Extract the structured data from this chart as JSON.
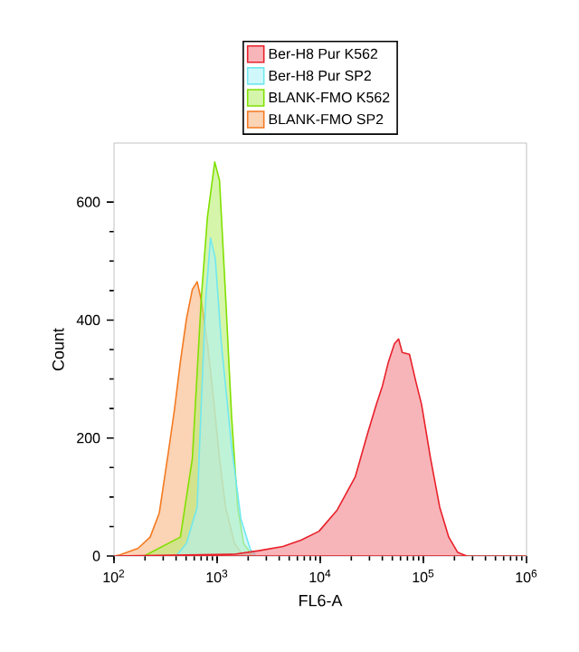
{
  "chart_data": {
    "type": "area",
    "xlabel": "FL6-A",
    "ylabel": "Count",
    "log": "x",
    "legend": "top",
    "grid": false,
    "xlim": [
      100,
      1000000
    ],
    "ylim": [
      0,
      700
    ],
    "xticks": [
      {
        "value": 100,
        "label": "10$^{2}$"
      },
      {
        "value": 1000,
        "label": "10$^{3}$"
      },
      {
        "value": 10000,
        "label": "10$^{4}$"
      },
      {
        "value": 100000,
        "label": "10$^{5}$"
      },
      {
        "value": 1000000,
        "label": "10$^{6}$"
      }
    ],
    "yticks": [
      0,
      200,
      400,
      600
    ],
    "series": [
      {
        "name": "BLANK-FMO SP2",
        "color": "#f47a20",
        "x": [
          100,
          114,
          171,
          224,
          275,
          336,
          385,
          440,
          503,
          575,
          641,
          705,
          806,
          922,
          1055,
          1207,
          1479,
          1808,
          1000000
        ],
        "values": [
          0,
          2,
          13,
          32,
          73,
          175,
          247,
          329,
          401,
          452,
          465,
          432,
          360,
          268,
          165,
          83,
          21,
          0,
          0
        ]
      },
      {
        "name": "BLANK-FMO K562",
        "color": "#80e000",
        "x": [
          100,
          196,
          440,
          575,
          705,
          806,
          948,
          1055,
          1207,
          1381,
          1581,
          1808,
          2213,
          1000000
        ],
        "values": [
          0,
          0,
          32,
          165,
          442,
          575,
          668,
          637,
          442,
          237,
          83,
          21,
          0,
          0
        ]
      },
      {
        "name": "Ber-H8 Pur SP2",
        "color": "#70e8f0",
        "x": [
          100,
          400,
          503,
          640,
          705,
          780,
          863,
          960,
          1100,
          1381,
          1700,
          2100,
          2400,
          1000000
        ],
        "values": [
          0,
          0,
          21,
          83,
          268,
          442,
          539,
          504,
          360,
          186,
          63,
          11,
          0,
          0
        ]
      },
      {
        "name": "Ber-H8 Pur K562",
        "color": "#e8202a",
        "x": [
          100,
          1479,
          2535,
          4335,
          6500,
          9730,
          14590,
          21830,
          28580,
          35000,
          40000,
          45800,
          52400,
          57500,
          62400,
          73300,
          83900,
          96000,
          117500,
          143900,
          176200,
          215400,
          263600,
          1000000
        ],
        "values": [
          0,
          3,
          9,
          16,
          27,
          42,
          78,
          134,
          206,
          257,
          288,
          329,
          360,
          368,
          345,
          342,
          298,
          257,
          165,
          83,
          32,
          6,
          0,
          0
        ]
      }
    ]
  }
}
